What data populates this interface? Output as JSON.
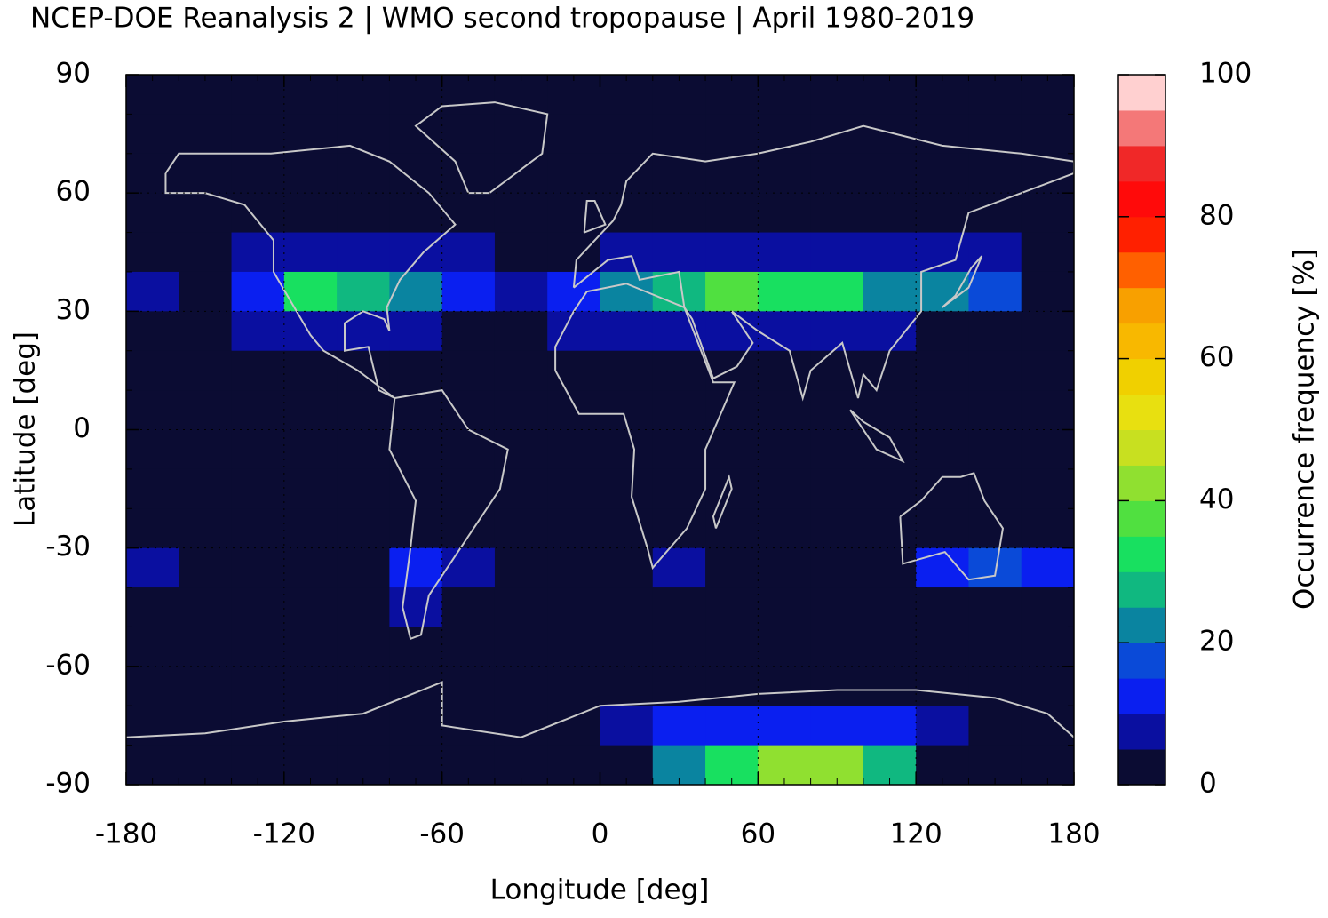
{
  "chart_data": {
    "type": "heatmap",
    "title": "NCEP-DOE Reanalysis 2 | WMO second tropopause | April 1980-2019",
    "x_label": "Longitude [deg]",
    "y_label": "Latitude [deg]",
    "colorbar_label": "Occurrence frequency [%]",
    "x": [
      -170,
      -150,
      -130,
      -110,
      -90,
      -70,
      -50,
      -30,
      -10,
      10,
      30,
      50,
      70,
      90,
      110,
      130,
      150,
      170
    ],
    "y": [
      85,
      75,
      65,
      55,
      45,
      35,
      25,
      15,
      5,
      -5,
      -15,
      -25,
      -35,
      -45,
      -55,
      -65,
      -75,
      -85
    ],
    "values": [
      [
        2,
        2,
        2,
        2,
        2,
        2,
        2,
        2,
        2,
        2,
        2,
        2,
        2,
        2,
        2,
        2,
        2,
        2
      ],
      [
        2,
        2,
        2,
        2,
        2,
        2,
        2,
        2,
        2,
        2,
        2,
        2,
        2,
        2,
        2,
        2,
        2,
        2
      ],
      [
        2,
        2,
        2,
        2,
        2,
        2,
        2,
        2,
        2,
        2,
        2,
        2,
        2,
        2,
        2,
        2,
        2,
        2
      ],
      [
        2,
        2,
        2,
        2,
        2,
        2,
        2,
        2,
        2,
        2,
        2,
        2,
        2,
        2,
        2,
        2,
        2,
        2
      ],
      [
        2,
        2,
        7,
        8,
        9,
        8,
        7,
        3,
        2,
        5,
        7,
        8,
        8,
        8,
        7,
        7,
        5,
        2
      ],
      [
        8,
        3,
        12,
        30,
        28,
        20,
        12,
        9,
        10,
        22,
        28,
        35,
        34,
        30,
        22,
        24,
        18,
        4
      ],
      [
        2,
        2,
        6,
        7,
        7,
        6,
        3,
        2,
        5,
        7,
        8,
        8,
        7,
        7,
        6,
        2,
        2,
        2
      ],
      [
        2,
        2,
        2,
        2,
        2,
        2,
        2,
        2,
        2,
        2,
        2,
        2,
        2,
        2,
        2,
        2,
        2,
        2
      ],
      [
        2,
        2,
        2,
        2,
        2,
        2,
        2,
        2,
        2,
        2,
        2,
        2,
        2,
        2,
        2,
        2,
        2,
        2
      ],
      [
        2,
        2,
        2,
        2,
        2,
        2,
        2,
        2,
        2,
        2,
        2,
        2,
        2,
        2,
        2,
        2,
        2,
        2
      ],
      [
        2,
        2,
        2,
        2,
        2,
        2,
        2,
        2,
        2,
        2,
        2,
        2,
        2,
        2,
        2,
        2,
        2,
        2
      ],
      [
        2,
        2,
        2,
        2,
        2,
        2,
        2,
        2,
        2,
        2,
        2,
        2,
        2,
        2,
        2,
        2,
        2,
        2
      ],
      [
        9,
        2,
        2,
        2,
        2,
        10,
        6,
        2,
        2,
        2,
        6,
        2,
        2,
        2,
        2,
        10,
        16,
        10
      ],
      [
        2,
        2,
        2,
        2,
        2,
        8,
        2,
        2,
        2,
        2,
        2,
        2,
        2,
        2,
        2,
        2,
        2,
        2
      ],
      [
        2,
        2,
        2,
        2,
        2,
        2,
        2,
        2,
        2,
        2,
        2,
        2,
        2,
        2,
        2,
        2,
        2,
        2
      ],
      [
        2,
        2,
        2,
        2,
        2,
        2,
        2,
        2,
        2,
        2,
        2,
        2,
        2,
        2,
        2,
        2,
        2,
        2
      ],
      [
        2,
        2,
        2,
        2,
        2,
        2,
        2,
        2,
        2,
        6,
        10,
        12,
        14,
        14,
        12,
        8,
        2,
        2
      ],
      [
        2,
        2,
        2,
        2,
        2,
        2,
        2,
        2,
        2,
        2,
        20,
        32,
        44,
        42,
        25,
        2,
        2,
        2
      ]
    ],
    "xlim": [
      -180,
      180
    ],
    "ylim": [
      -90,
      90
    ],
    "xticks": [
      -180,
      -120,
      -60,
      0,
      60,
      120,
      180
    ],
    "yticks": [
      -90,
      -60,
      -30,
      0,
      30,
      60,
      90
    ],
    "clim": [
      0,
      100
    ],
    "cticks": [
      0,
      20,
      40,
      60,
      80,
      100
    ],
    "colorscale": [
      "#0b0c33",
      "#0a0fa0",
      "#0a1ff0",
      "#0a4ad8",
      "#0a84a0",
      "#10b880",
      "#18e060",
      "#50e040",
      "#90e030",
      "#c8e020",
      "#e8e010",
      "#f0d000",
      "#f8b800",
      "#f8a000",
      "#ff6000",
      "#ff2000",
      "#ff0a0a",
      "#f02828",
      "#f47878",
      "#ffd0d0"
    ],
    "grid": true
  }
}
